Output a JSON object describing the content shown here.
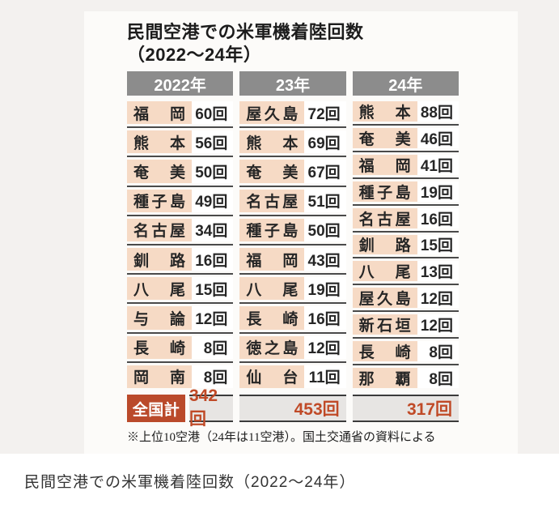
{
  "figure": {
    "title_line1": "民間空港での米軍機着陸回数",
    "title_line2": "（2022～24年）",
    "total_label": "全国計",
    "footnote": "※上位10空港（24年は11空港）。国土交通省の資料による"
  },
  "caption": {
    "text": "民間空港での米軍機着陸回数（2022～24年）"
  },
  "colors": {
    "header_bg": "#8c8c8c",
    "name_cell_bg": "#f6dac5",
    "separator": "#4a4a4a",
    "total_label_bg": "#ba4a2b",
    "total_cell_bg": "#e7e5e3",
    "total_number_color": "#c04a27"
  },
  "chart_data": {
    "type": "table",
    "title": "民間空港での米軍機着陸回数（2022～24年）",
    "unit": "回",
    "total_label": "全国計",
    "footnote": "※上位10空港（24年は11空港）。国土交通省の資料による",
    "columns": [
      {
        "header": "2022年",
        "total": 342,
        "rows": [
          {
            "airport": "福岡",
            "count": 60
          },
          {
            "airport": "熊本",
            "count": 56
          },
          {
            "airport": "奄美",
            "count": 50
          },
          {
            "airport": "種子島",
            "count": 49
          },
          {
            "airport": "名古屋",
            "count": 34
          },
          {
            "airport": "釧路",
            "count": 16
          },
          {
            "airport": "八尾",
            "count": 15
          },
          {
            "airport": "与論",
            "count": 12
          },
          {
            "airport": "長崎",
            "count": 8
          },
          {
            "airport": "岡南",
            "count": 8
          }
        ]
      },
      {
        "header": "23年",
        "total": 453,
        "rows": [
          {
            "airport": "屋久島",
            "count": 72
          },
          {
            "airport": "熊本",
            "count": 69
          },
          {
            "airport": "奄美",
            "count": 67
          },
          {
            "airport": "名古屋",
            "count": 51
          },
          {
            "airport": "種子島",
            "count": 50
          },
          {
            "airport": "福岡",
            "count": 43
          },
          {
            "airport": "八尾",
            "count": 19
          },
          {
            "airport": "長崎",
            "count": 16
          },
          {
            "airport": "徳之島",
            "count": 12
          },
          {
            "airport": "仙台",
            "count": 11
          }
        ]
      },
      {
        "header": "24年",
        "total": 317,
        "rows": [
          {
            "airport": "熊本",
            "count": 88
          },
          {
            "airport": "奄美",
            "count": 46
          },
          {
            "airport": "福岡",
            "count": 41
          },
          {
            "airport": "種子島",
            "count": 19
          },
          {
            "airport": "名古屋",
            "count": 16
          },
          {
            "airport": "釧路",
            "count": 15
          },
          {
            "airport": "八尾",
            "count": 13
          },
          {
            "airport": "屋久島",
            "count": 12
          },
          {
            "airport": "新石垣",
            "count": 12
          },
          {
            "airport": "長崎",
            "count": 8
          },
          {
            "airport": "那覇",
            "count": 8
          }
        ]
      }
    ]
  }
}
